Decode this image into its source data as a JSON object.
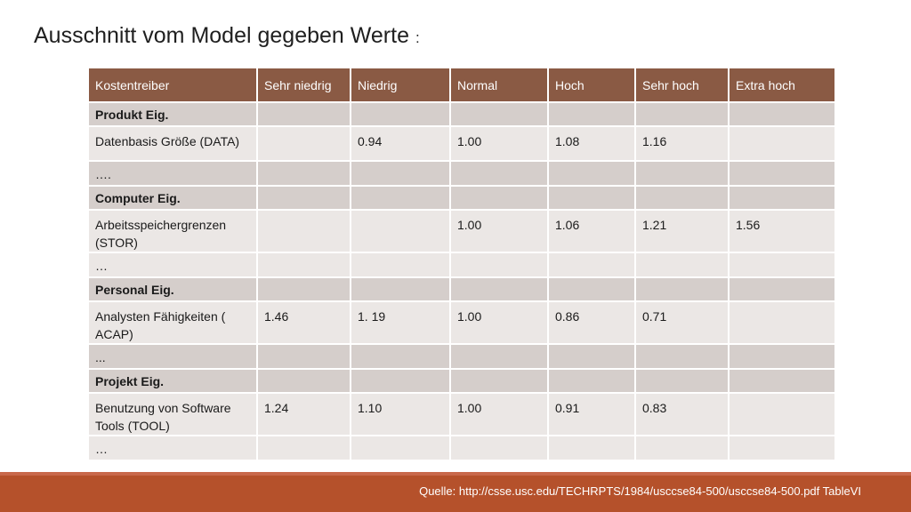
{
  "title": "Ausschnitt vom Model gegeben Werte",
  "title_colon": ":",
  "table": {
    "headers": [
      "Kostentreiber",
      "Sehr niedrig",
      "Niedrig",
      "Normal",
      "Hoch",
      "Sehr hoch",
      "Extra hoch"
    ],
    "rows": [
      {
        "kind": "sec",
        "cells": [
          "Produkt Eig.",
          "",
          "",
          "",
          "",
          "",
          ""
        ]
      },
      {
        "kind": "data",
        "cells": [
          "Datenbasis Größe (DATA)",
          "",
          "0.94",
          "1.00",
          "1.08",
          "1.16",
          ""
        ]
      },
      {
        "kind": "dots",
        "cells": [
          "….",
          "",
          "",
          "",
          "",
          "",
          ""
        ]
      },
      {
        "kind": "sec",
        "cells": [
          "Computer Eig.",
          "",
          "",
          "",
          "",
          "",
          ""
        ]
      },
      {
        "kind": "data tall",
        "cells": [
          "Arbeitsspeichergrenzen (STOR)",
          "",
          "",
          "1.00",
          "1.06",
          "1.21",
          "1.56"
        ]
      },
      {
        "kind": "dots light",
        "cells": [
          "…",
          "",
          "",
          "",
          "",
          "",
          ""
        ]
      },
      {
        "kind": "sec",
        "cells": [
          "Personal Eig.",
          "",
          "",
          "",
          "",
          "",
          ""
        ]
      },
      {
        "kind": "data tall",
        "cells": [
          "Analysten Fähigkeiten ( ACAP)",
          "1.46",
          "1. 19",
          "1.00",
          "0.86",
          "0.71",
          ""
        ]
      },
      {
        "kind": "dots",
        "cells": [
          "...",
          "",
          "",
          "",
          "",
          "",
          ""
        ]
      },
      {
        "kind": "sec",
        "cells": [
          "Projekt Eig.",
          "",
          "",
          "",
          "",
          "",
          ""
        ]
      },
      {
        "kind": "data tall",
        "cells": [
          "Benutzung von Software Tools (TOOL)",
          "1.24",
          "1.10",
          "1.00",
          "0.91",
          "0.83",
          ""
        ]
      },
      {
        "kind": "dots light",
        "cells": [
          "…",
          "",
          "",
          "",
          "",
          "",
          ""
        ]
      }
    ]
  },
  "footer": {
    "source": "Quelle: http://csse.usc.edu/TECHRPTS/1984/usccse84-500/usccse84-500.pdf TableVI"
  },
  "colors": {
    "header_bg": "#8a5a44",
    "section_row_bg": "#d5cecb",
    "data_row_bg": "#ebe7e5",
    "footer_bg": "#b5512b"
  }
}
